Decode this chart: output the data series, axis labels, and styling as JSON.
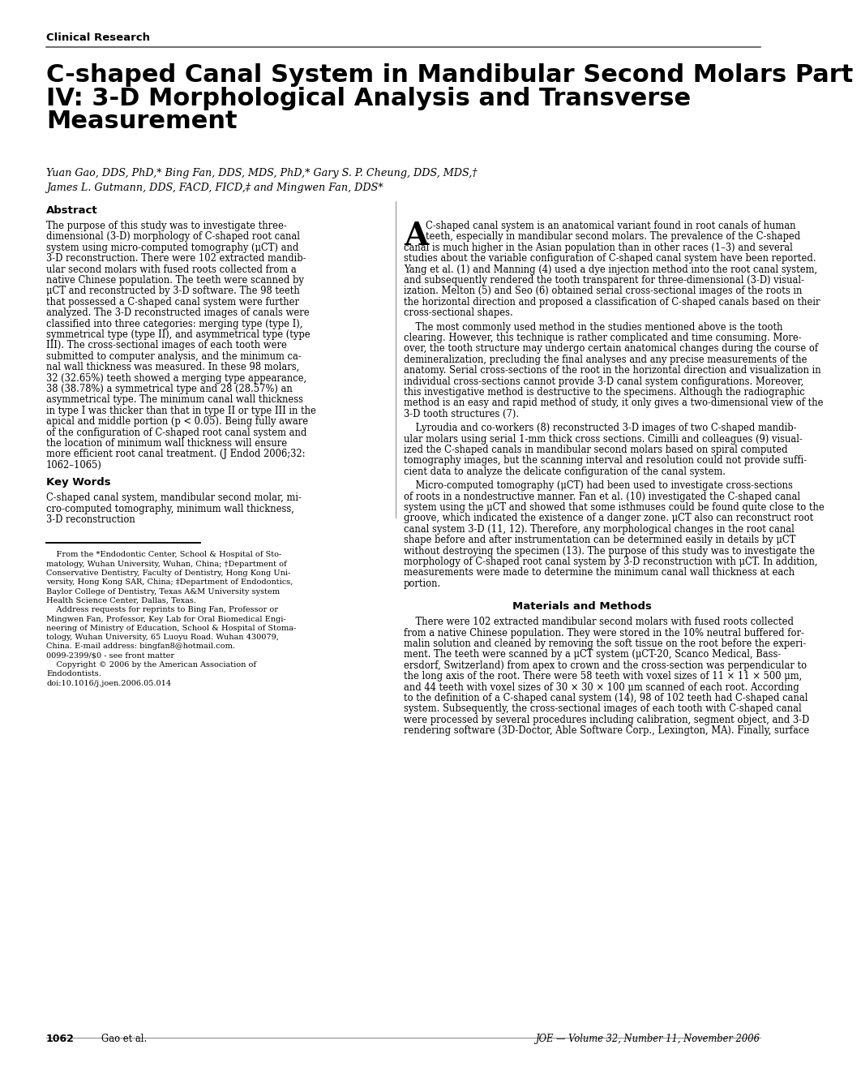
{
  "header_text": "Clinical Research",
  "title_line1": "C-shaped Canal System in Mandibular Second Molars Part",
  "title_line2": "IV: 3-D Morphological Analysis and Transverse",
  "title_line3": "Measurement",
  "authors_line1": "Yuan Gao, DDS, PhD,* Bing Fan, DDS, MDS, PhD,* Gary S. P. Cheung, DDS, MDS,†",
  "authors_line2": "James L. Gutmann, DDS, FACD, FICD,‡ and Mingwen Fan, DDS*",
  "abstract_title": "Abstract",
  "keywords_title": "Key Words",
  "methods_title": "Materials and Methods",
  "footer_page": "1062",
  "footer_authors": "Gao et al.",
  "footer_journal": "JOE — Volume 32, Number 11, November 2006",
  "left_abstract_lines": [
    "The purpose of this study was to investigate three-",
    "dimensional (3-D) morphology of C-shaped root canal",
    "system using micro-computed tomography (μCT) and",
    "3-D reconstruction. There were 102 extracted mandib-",
    "ular second molars with fused roots collected from a",
    "native Chinese population. The teeth were scanned by",
    "μCT and reconstructed by 3-D software. The 98 teeth",
    "that possessed a C-shaped canal system were further",
    "analyzed. The 3-D reconstructed images of canals were",
    "classified into three categories: merging type (type I),",
    "symmetrical type (type II), and asymmetrical type (type",
    "III). The cross-sectional images of each tooth were",
    "submitted to computer analysis, and the minimum ca-",
    "nal wall thickness was measured. In these 98 molars,",
    "32 (32.65%) teeth showed a merging type appearance,",
    "38 (38.78%) a symmetrical type and 28 (28.57%) an",
    "asymmetrical type. The minimum canal wall thickness",
    "in type I was thicker than that in type II or type III in the",
    "apical and middle portion (p < 0.05). Being fully aware",
    "of the configuration of C-shaped root canal system and",
    "the location of minimum wall thickness will ensure",
    "more efficient root canal treatment. (J Endod 2006;32:",
    "1062–1065)"
  ],
  "keywords_lines": [
    "C-shaped canal system, mandibular second molar, mi-",
    "cro-computed tomography, minimum wall thickness,",
    "3-D reconstruction"
  ],
  "footnote_lines": [
    "    From the *Endodontic Center, School & Hospital of Sto-",
    "matology, Wuhan University, Wuhan, China; †Department of",
    "Conservative Dentistry, Faculty of Dentistry, Hong Kong Uni-",
    "versity, Hong Kong SAR, China; ‡Department of Endodontics,",
    "Baylor College of Dentistry, Texas A&M University system",
    "Health Science Center, Dallas, Texas.",
    "    Address requests for reprints to Bing Fan, Professor or",
    "Mingwen Fan, Professor, Key Lab for Oral Biomedical Engi-",
    "neering of Ministry of Education, School & Hospital of Stoma-",
    "tology, Wuhan University, 65 Luoyu Road. Wuhan 430079,",
    "China. E-mail address: bingfan8@hotmail.com.",
    "0099-2399/$0 - see front matter",
    "    Copyright © 2006 by the American Association of",
    "Endodontists.",
    "doi:10.1016/j.joen.2006.05.014"
  ],
  "right_col_para1": [
    "C-shaped canal system is an anatomical variant found in root canals of human",
    "teeth, especially in mandibular second molars. The prevalence of the C-shaped",
    "canal is much higher in the Asian population than in other races (1–3) and several",
    "studies about the variable configuration of C-shaped canal system have been reported.",
    "Yang et al. (1) and Manning (4) used a dye injection method into the root canal system,",
    "and subsequently rendered the tooth transparent for three-dimensional (3-D) visual-",
    "ization. Melton (5) and Seo (6) obtained serial cross-sectional images of the roots in",
    "the horizontal direction and proposed a classification of C-shaped canals based on their",
    "cross-sectional shapes."
  ],
  "right_col_para2": [
    "    The most commonly used method in the studies mentioned above is the tooth",
    "clearing. However, this technique is rather complicated and time consuming. More-",
    "over, the tooth structure may undergo certain anatomical changes during the course of",
    "demineralization, precluding the final analyses and any precise measurements of the",
    "anatomy. Serial cross-sections of the root in the horizontal direction and visualization in",
    "individual cross-sections cannot provide 3-D canal system configurations. Moreover,",
    "this investigative method is destructive to the specimens. Although the radiographic",
    "method is an easy and rapid method of study, it only gives a two-dimensional view of the",
    "3-D tooth structures (7)."
  ],
  "right_col_para3": [
    "    Lyroudia and co-workers (8) reconstructed 3-D images of two C-shaped mandib-",
    "ular molars using serial 1-mm thick cross sections. Cimilli and colleagues (9) visual-",
    "ized the C-shaped canals in mandibular second molars based on spiral computed",
    "tomography images, but the scanning interval and resolution could not provide suffi-",
    "cient data to analyze the delicate configuration of the canal system."
  ],
  "right_col_para4": [
    "    Micro-computed tomography (μCT) had been used to investigate cross-sections",
    "of roots in a nondestructive manner. Fan et al. (10) investigated the C-shaped canal",
    "system using the μCT and showed that some isthmuses could be found quite close to the",
    "groove, which indicated the existence of a danger zone. μCT also can reconstruct root",
    "canal system 3-D (11, 12). Therefore, any morphological changes in the root canal",
    "shape before and after instrumentation can be determined easily in details by μCT",
    "without destroying the specimen (13). The purpose of this study was to investigate the",
    "morphology of C-shaped root canal system by 3-D reconstruction with μCT. In addition,",
    "measurements were made to determine the minimum canal wall thickness at each",
    "portion."
  ],
  "methods_lines": [
    "    There were 102 extracted mandibular second molars with fused roots collected",
    "from a native Chinese population. They were stored in the 10% neutral buffered for-",
    "malin solution and cleaned by removing the soft tissue on the root before the experi-",
    "ment. The teeth were scanned by a μCT system (μCT-20, Scanco Medical, Bass-",
    "ersdorf, Switzerland) from apex to crown and the cross-section was perpendicular to",
    "the long axis of the root. There were 58 teeth with voxel sizes of 11 × 11 × 500 μm,",
    "and 44 teeth with voxel sizes of 30 × 30 × 100 μm scanned of each root. According",
    "to the definition of a C-shaped canal system (14), 98 of 102 teeth had C-shaped canal",
    "system. Subsequently, the cross-sectional images of each tooth with C-shaped canal",
    "were processed by several procedures including calibration, segment object, and 3-D",
    "rendering software (3D-Doctor, Able Software Corp., Lexington, MA). Finally, surface"
  ]
}
